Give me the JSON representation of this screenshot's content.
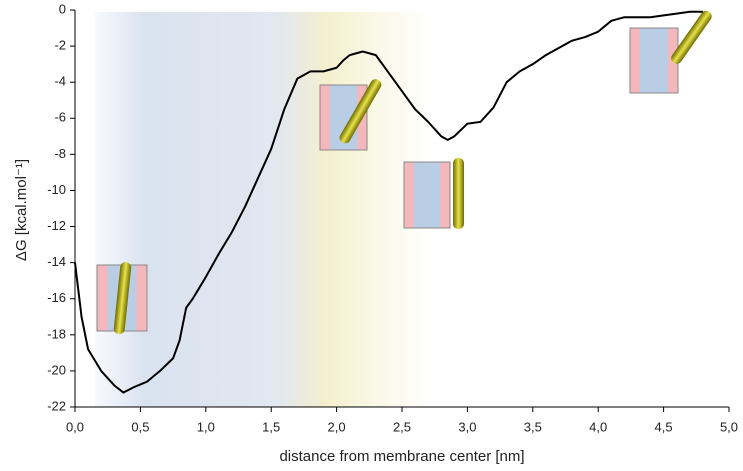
{
  "chart_data": {
    "type": "line",
    "x_label": "distance from membrane center [nm]",
    "y_label": "ΔG [kcal.mol⁻¹]",
    "xlim": [
      0,
      5
    ],
    "ylim": [
      -22,
      0
    ],
    "xticks": [
      {
        "value": 0,
        "label": "0,0"
      },
      {
        "value": 0.5,
        "label": "0,5"
      },
      {
        "value": 1,
        "label": "1,0"
      },
      {
        "value": 1.5,
        "label": "1,5"
      },
      {
        "value": 2,
        "label": "2,0"
      },
      {
        "value": 2.5,
        "label": "2,5"
      },
      {
        "value": 3,
        "label": "3,0"
      },
      {
        "value": 3.5,
        "label": "3,5"
      },
      {
        "value": 4,
        "label": "4,0"
      },
      {
        "value": 4.5,
        "label": "4,5"
      },
      {
        "value": 5,
        "label": "5,0"
      }
    ],
    "yticks": [
      -22,
      -20,
      -18,
      -16,
      -14,
      -12,
      -10,
      -8,
      -6,
      -4,
      -2,
      0
    ],
    "series": [
      {
        "color": "#000000",
        "x": [
          0,
          0.05,
          0.1,
          0.2,
          0.3,
          0.37,
          0.45,
          0.55,
          0.65,
          0.75,
          0.8,
          0.85,
          0.9,
          1.0,
          1.1,
          1.2,
          1.3,
          1.4,
          1.5,
          1.6,
          1.7,
          1.8,
          1.9,
          2.0,
          2.05,
          2.1,
          2.2,
          2.3,
          2.4,
          2.5,
          2.6,
          2.7,
          2.8,
          2.85,
          2.9,
          3.0,
          3.1,
          3.2,
          3.3,
          3.4,
          3.5,
          3.6,
          3.7,
          3.8,
          3.9,
          4.0,
          4.1,
          4.2,
          4.3,
          4.4,
          4.5,
          4.6,
          4.7,
          4.8
        ],
        "values": [
          -14,
          -17,
          -18.8,
          -20,
          -20.8,
          -21.2,
          -20.9,
          -20.6,
          -20,
          -19.3,
          -18.3,
          -16.5,
          -16,
          -14.8,
          -13.5,
          -12.3,
          -10.9,
          -9.3,
          -7.7,
          -5.5,
          -3.8,
          -3.4,
          -3.4,
          -3.2,
          -2.8,
          -2.5,
          -2.3,
          -2.5,
          -3.5,
          -4.5,
          -5.5,
          -6.2,
          -7.0,
          -7.2,
          -7.0,
          -6.3,
          -6.2,
          -5.4,
          -4.0,
          -3.4,
          -3.0,
          -2.5,
          -2.1,
          -1.7,
          -1.5,
          -1.2,
          -0.6,
          -0.4,
          -0.4,
          -0.4,
          -0.3,
          -0.2,
          -0.1,
          -0.1
        ]
      }
    ]
  }
}
